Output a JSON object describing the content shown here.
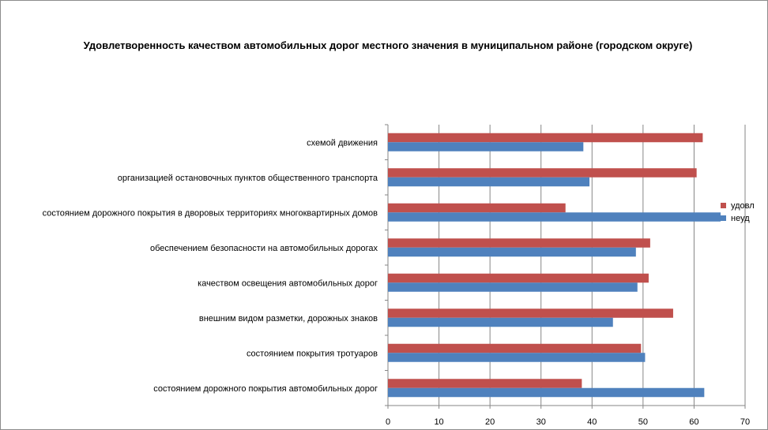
{
  "chart_data": {
    "type": "bar",
    "orientation": "horizontal",
    "title": "Удовлетворенность качеством автомобильных дорог местного значения в муниципальном районе (городском округе)",
    "categories": [
      "схемой движения",
      "организацией остановочных пунктов общественного транспорта",
      "состоянием дорожного покрытия в дворовых территориях многоквартирных домов",
      "обеспечением безопасности на автомобильных дорогах",
      "качеством освещения автомобильных дорог",
      "внешним видом разметки, дорожных знаков",
      "состоянием покрытия тротуаров",
      "состоянием дорожного покрытия автомобильных дорог"
    ],
    "series": [
      {
        "name": "удовл",
        "color": "#c0504d",
        "values": [
          61.7,
          60.5,
          34.8,
          51.4,
          51.1,
          55.9,
          49.6,
          38.0
        ]
      },
      {
        "name": "неуд",
        "color": "#4f81bd",
        "values": [
          38.3,
          39.5,
          65.2,
          48.6,
          48.9,
          44.1,
          50.4,
          62.0
        ]
      }
    ],
    "xlim": [
      0,
      70
    ],
    "xticks": [
      "0",
      "10",
      "20",
      "30",
      "40",
      "50",
      "60",
      "70"
    ],
    "grid": "vertical",
    "legend_position": "right"
  }
}
